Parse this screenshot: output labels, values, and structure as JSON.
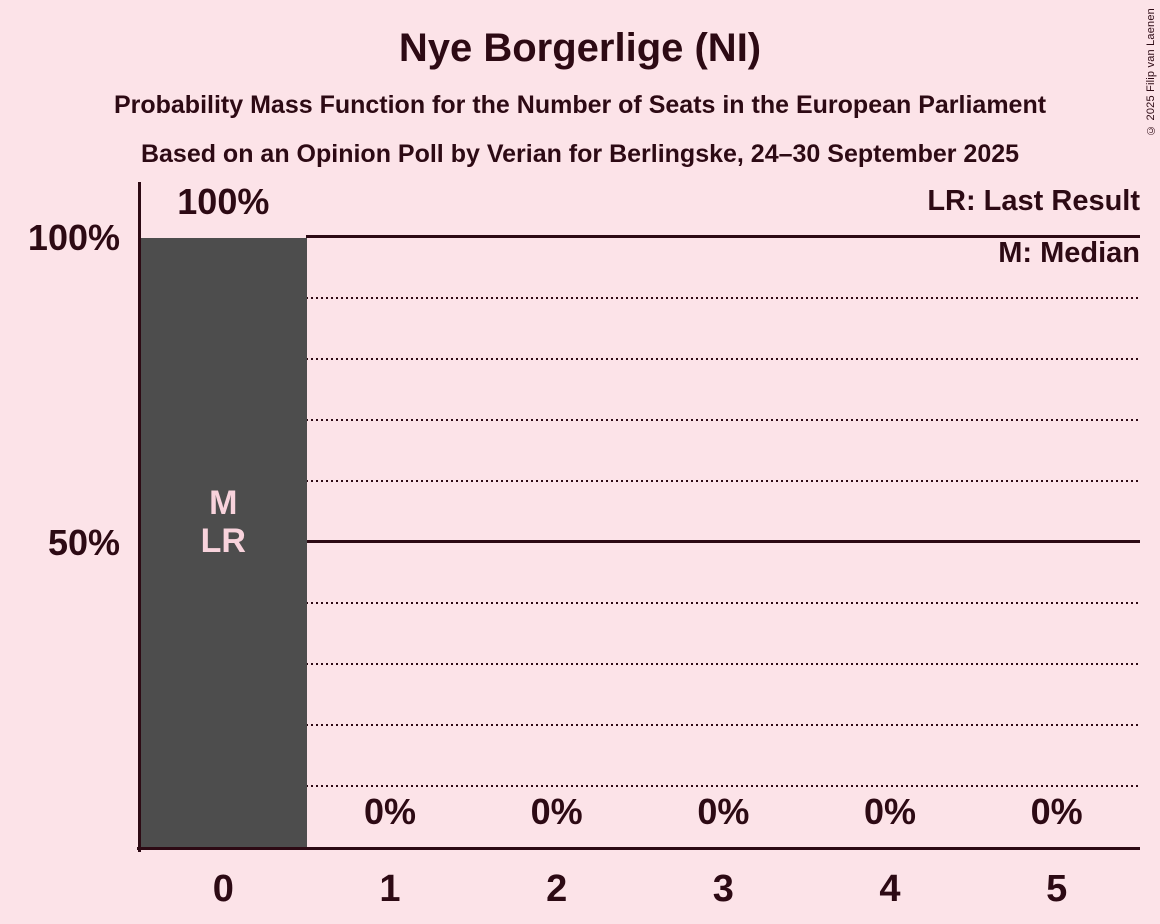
{
  "page": {
    "title": "Nye Borgerlige (NI)",
    "subtitle": "Probability Mass Function for the Number of Seats in the European Parliament",
    "source": "Based on an Opinion Poll by Verian for Berlingske, 24–30 September 2025",
    "copyright": "© 2025 Filip van Laenen"
  },
  "legend": {
    "last_result": "LR: Last Result",
    "median": "M: Median"
  },
  "colors": {
    "background": "#fce3e8",
    "text": "#2d0a14",
    "bar": "#4d4d4d",
    "bar_label": "#f8d3dc"
  },
  "chart_data": {
    "type": "bar",
    "title": "Nye Borgerlige (NI)",
    "subtitle": "Probability Mass Function for the Number of Seats in the European Parliament",
    "source": "Based on an Opinion Poll by Verian for Berlingske, 24–30 September 2025",
    "xlabel": "",
    "ylabel": "",
    "categories": [
      "0",
      "1",
      "2",
      "3",
      "4",
      "5"
    ],
    "values": [
      100,
      0,
      0,
      0,
      0,
      0
    ],
    "value_labels": [
      "100%",
      "0%",
      "0%",
      "0%",
      "0%",
      "0%"
    ],
    "ylim": [
      0,
      100
    ],
    "ytick_positions": [
      100,
      50
    ],
    "ytick_labels": [
      "100%",
      "50%"
    ],
    "solid_gridlines": [
      100,
      50
    ],
    "dotted_gridlines": [
      90,
      80,
      70,
      60,
      40,
      30,
      20,
      10
    ],
    "grid": "horizontal",
    "legend_position": "top-right",
    "legend_entries": [
      "LR: Last Result",
      "M: Median"
    ],
    "annotations": {
      "median": "M",
      "last_result": "LR"
    },
    "median_index": 0,
    "last_result_index": 0
  }
}
